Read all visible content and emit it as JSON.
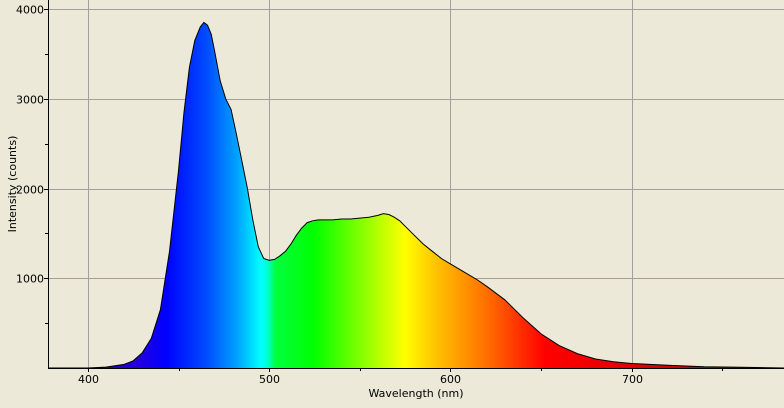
{
  "chart_data": {
    "type": "area",
    "title": "",
    "xlabel": "Wavelength (nm)",
    "ylabel": "Intensity (counts)",
    "xlim": [
      378,
      784
    ],
    "ylim": [
      0,
      4000
    ],
    "x_ticks": [
      400,
      500,
      600,
      700
    ],
    "y_ticks": [
      1000,
      2000,
      3000,
      4000
    ],
    "grid": true,
    "legend": "none",
    "fill": "visible-spectrum-gradient",
    "line_color": "#000000",
    "background_color": "#ece9d8",
    "grid_color": "#a0a0a0",
    "series": [
      {
        "x": [
          378,
          400,
          410,
          420,
          425,
          430,
          435,
          440,
          445,
          450,
          453,
          456,
          459,
          462,
          464,
          466,
          468,
          470,
          473,
          476,
          479,
          482,
          485,
          488,
          491,
          494,
          497,
          500,
          503,
          506,
          509,
          512,
          515,
          518,
          521,
          524,
          527,
          530,
          535,
          540,
          545,
          550,
          555,
          560,
          563,
          566,
          569,
          572,
          575,
          580,
          585,
          590,
          595,
          600,
          605,
          610,
          615,
          620,
          630,
          640,
          650,
          660,
          670,
          680,
          690,
          700,
          720,
          740,
          760,
          784
        ],
        "y": [
          0,
          0,
          10,
          40,
          80,
          170,
          330,
          650,
          1300,
          2200,
          2850,
          3350,
          3650,
          3800,
          3850,
          3820,
          3720,
          3520,
          3200,
          3000,
          2880,
          2600,
          2300,
          2000,
          1650,
          1350,
          1220,
          1200,
          1210,
          1250,
          1300,
          1380,
          1480,
          1560,
          1620,
          1640,
          1650,
          1650,
          1650,
          1660,
          1660,
          1670,
          1680,
          1700,
          1720,
          1710,
          1680,
          1640,
          1580,
          1480,
          1380,
          1300,
          1220,
          1160,
          1100,
          1040,
          980,
          910,
          760,
          560,
          380,
          250,
          160,
          100,
          70,
          50,
          30,
          15,
          8,
          0
        ]
      }
    ]
  }
}
